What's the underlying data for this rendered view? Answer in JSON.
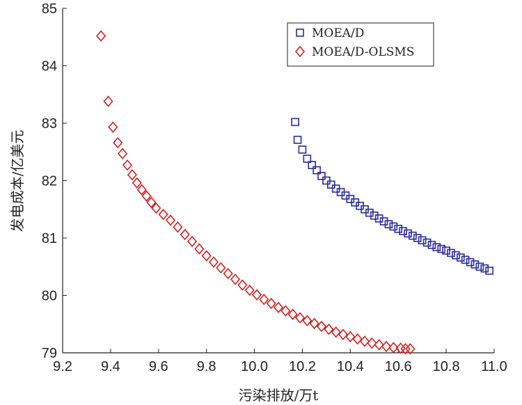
{
  "chart_data": {
    "type": "scatter",
    "xlabel": "污染排放/万t",
    "ylabel": "发电成本/亿美元",
    "xlim": [
      9.2,
      11.0
    ],
    "ylim": [
      79,
      85
    ],
    "xticks": [
      "9.2",
      "9.4",
      "9.6",
      "9.8",
      "10.0",
      "10.2",
      "10.4",
      "10.6",
      "10.8",
      "11.0"
    ],
    "yticks": [
      "79",
      "80",
      "81",
      "82",
      "83",
      "84",
      "85"
    ],
    "grid": false,
    "legend_position": "top-right",
    "series": [
      {
        "name": "MOEA/D",
        "marker": "square",
        "color": "#2a2a9a",
        "x": [
          10.17,
          10.18,
          10.2,
          10.22,
          10.24,
          10.26,
          10.28,
          10.3,
          10.32,
          10.34,
          10.36,
          10.38,
          10.4,
          10.42,
          10.44,
          10.46,
          10.48,
          10.5,
          10.52,
          10.54,
          10.56,
          10.58,
          10.6,
          10.62,
          10.64,
          10.66,
          10.68,
          10.7,
          10.72,
          10.74,
          10.76,
          10.78,
          10.8,
          10.82,
          10.84,
          10.86,
          10.88,
          10.9,
          10.92,
          10.94,
          10.96,
          10.98
        ],
        "y": [
          83.02,
          82.71,
          82.54,
          82.38,
          82.27,
          82.18,
          82.08,
          82.0,
          81.93,
          81.86,
          81.8,
          81.74,
          81.68,
          81.62,
          81.56,
          81.5,
          81.44,
          81.39,
          81.34,
          81.29,
          81.24,
          81.2,
          81.16,
          81.12,
          81.08,
          81.04,
          81.0,
          80.96,
          80.92,
          80.88,
          80.84,
          80.81,
          80.78,
          80.74,
          80.7,
          80.66,
          80.62,
          80.58,
          80.54,
          80.5,
          80.47,
          80.43
        ]
      },
      {
        "name": "MOEA/D-OLSMS",
        "marker": "diamond",
        "color": "#d42020",
        "x": [
          9.36,
          9.39,
          9.41,
          9.43,
          9.45,
          9.47,
          9.49,
          9.51,
          9.53,
          9.55,
          9.57,
          9.59,
          9.62,
          9.65,
          9.68,
          9.71,
          9.74,
          9.77,
          9.8,
          9.83,
          9.86,
          9.89,
          9.92,
          9.95,
          9.98,
          10.01,
          10.04,
          10.07,
          10.1,
          10.13,
          10.16,
          10.19,
          10.22,
          10.25,
          10.28,
          10.31,
          10.34,
          10.37,
          10.4,
          10.43,
          10.46,
          10.49,
          10.52,
          10.55,
          10.58,
          10.61,
          10.63,
          10.65
        ],
        "y": [
          84.52,
          83.38,
          82.93,
          82.66,
          82.47,
          82.27,
          82.1,
          81.96,
          81.84,
          81.73,
          81.62,
          81.52,
          81.41,
          81.31,
          81.19,
          81.06,
          80.94,
          80.81,
          80.69,
          80.58,
          80.48,
          80.38,
          80.28,
          80.18,
          80.09,
          80.01,
          79.93,
          79.86,
          79.79,
          79.73,
          79.67,
          79.61,
          79.56,
          79.51,
          79.46,
          79.41,
          79.36,
          79.32,
          79.28,
          79.24,
          79.2,
          79.17,
          79.14,
          79.11,
          79.09,
          79.08,
          79.07,
          79.07
        ]
      }
    ]
  }
}
